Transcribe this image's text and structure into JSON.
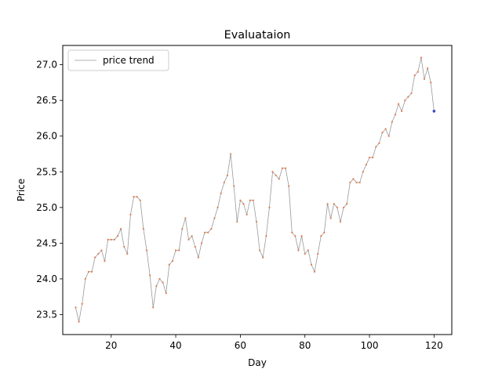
{
  "chart_data": {
    "type": "line",
    "title": "Evaluataion",
    "xlabel": "Day",
    "ylabel": "Price",
    "xlim": [
      5,
      125.5
    ],
    "ylim": [
      23.22,
      27.27
    ],
    "xticks": [
      20,
      40,
      60,
      80,
      100,
      120
    ],
    "xtick_labels": [
      "20",
      "40",
      "60",
      "80",
      "100",
      "120"
    ],
    "yticks": [
      23.5,
      24.0,
      24.5,
      25.0,
      25.5,
      26.0,
      26.5,
      27.0
    ],
    "ytick_labels": [
      "23.5",
      "24.0",
      "24.5",
      "25.0",
      "25.5",
      "26.0",
      "26.5",
      "27.0"
    ],
    "grid": false,
    "legend_position": "top-left",
    "series": [
      {
        "name": "price trend",
        "line_color": "#999999",
        "marker_color": "#e07b4f",
        "highlight_color": "#3b4cc0",
        "x": [
          9,
          10,
          11,
          12,
          13,
          14,
          15,
          16,
          17,
          18,
          19,
          20,
          21,
          22,
          23,
          24,
          25,
          26,
          27,
          28,
          29,
          30,
          31,
          32,
          33,
          34,
          35,
          36,
          37,
          38,
          39,
          40,
          41,
          42,
          43,
          44,
          45,
          46,
          47,
          48,
          49,
          50,
          51,
          52,
          53,
          54,
          55,
          56,
          57,
          58,
          59,
          60,
          61,
          62,
          63,
          64,
          65,
          66,
          67,
          68,
          69,
          70,
          71,
          72,
          73,
          74,
          75,
          76,
          77,
          78,
          79,
          80,
          81,
          82,
          83,
          84,
          85,
          86,
          87,
          88,
          89,
          90,
          91,
          92,
          93,
          94,
          95,
          96,
          97,
          98,
          99,
          100,
          101,
          102,
          103,
          104,
          105,
          106,
          107,
          108,
          109,
          110,
          111,
          112,
          113,
          114,
          115,
          116,
          117,
          118,
          119,
          120
        ],
        "values": [
          23.6,
          23.4,
          23.65,
          24.0,
          24.1,
          24.1,
          24.3,
          24.35,
          24.4,
          24.25,
          24.55,
          24.55,
          24.55,
          24.6,
          24.7,
          24.45,
          24.35,
          24.9,
          25.15,
          25.15,
          25.1,
          24.7,
          24.4,
          24.05,
          23.6,
          23.9,
          24.0,
          23.95,
          23.8,
          24.2,
          24.25,
          24.4,
          24.4,
          24.7,
          24.85,
          24.55,
          24.6,
          24.45,
          24.3,
          24.5,
          24.65,
          24.65,
          24.7,
          24.85,
          25.0,
          25.2,
          25.35,
          25.45,
          25.75,
          25.3,
          24.8,
          25.1,
          25.05,
          24.9,
          25.1,
          25.1,
          24.8,
          24.4,
          24.3,
          24.6,
          25.0,
          25.5,
          25.45,
          25.4,
          25.55,
          25.55,
          25.3,
          24.65,
          24.6,
          24.4,
          24.6,
          24.35,
          24.4,
          24.2,
          24.1,
          24.35,
          24.6,
          24.65,
          25.05,
          24.85,
          25.05,
          25.0,
          24.8,
          25.0,
          25.05,
          25.35,
          25.4,
          25.35,
          25.35,
          25.5,
          25.6,
          25.7,
          25.7,
          25.85,
          25.9,
          26.05,
          26.1,
          26.0,
          26.2,
          26.3,
          26.45,
          26.35,
          26.5,
          26.55,
          26.6,
          26.85,
          26.9,
          27.1,
          26.8,
          26.95,
          26.75,
          26.35
        ]
      }
    ]
  }
}
